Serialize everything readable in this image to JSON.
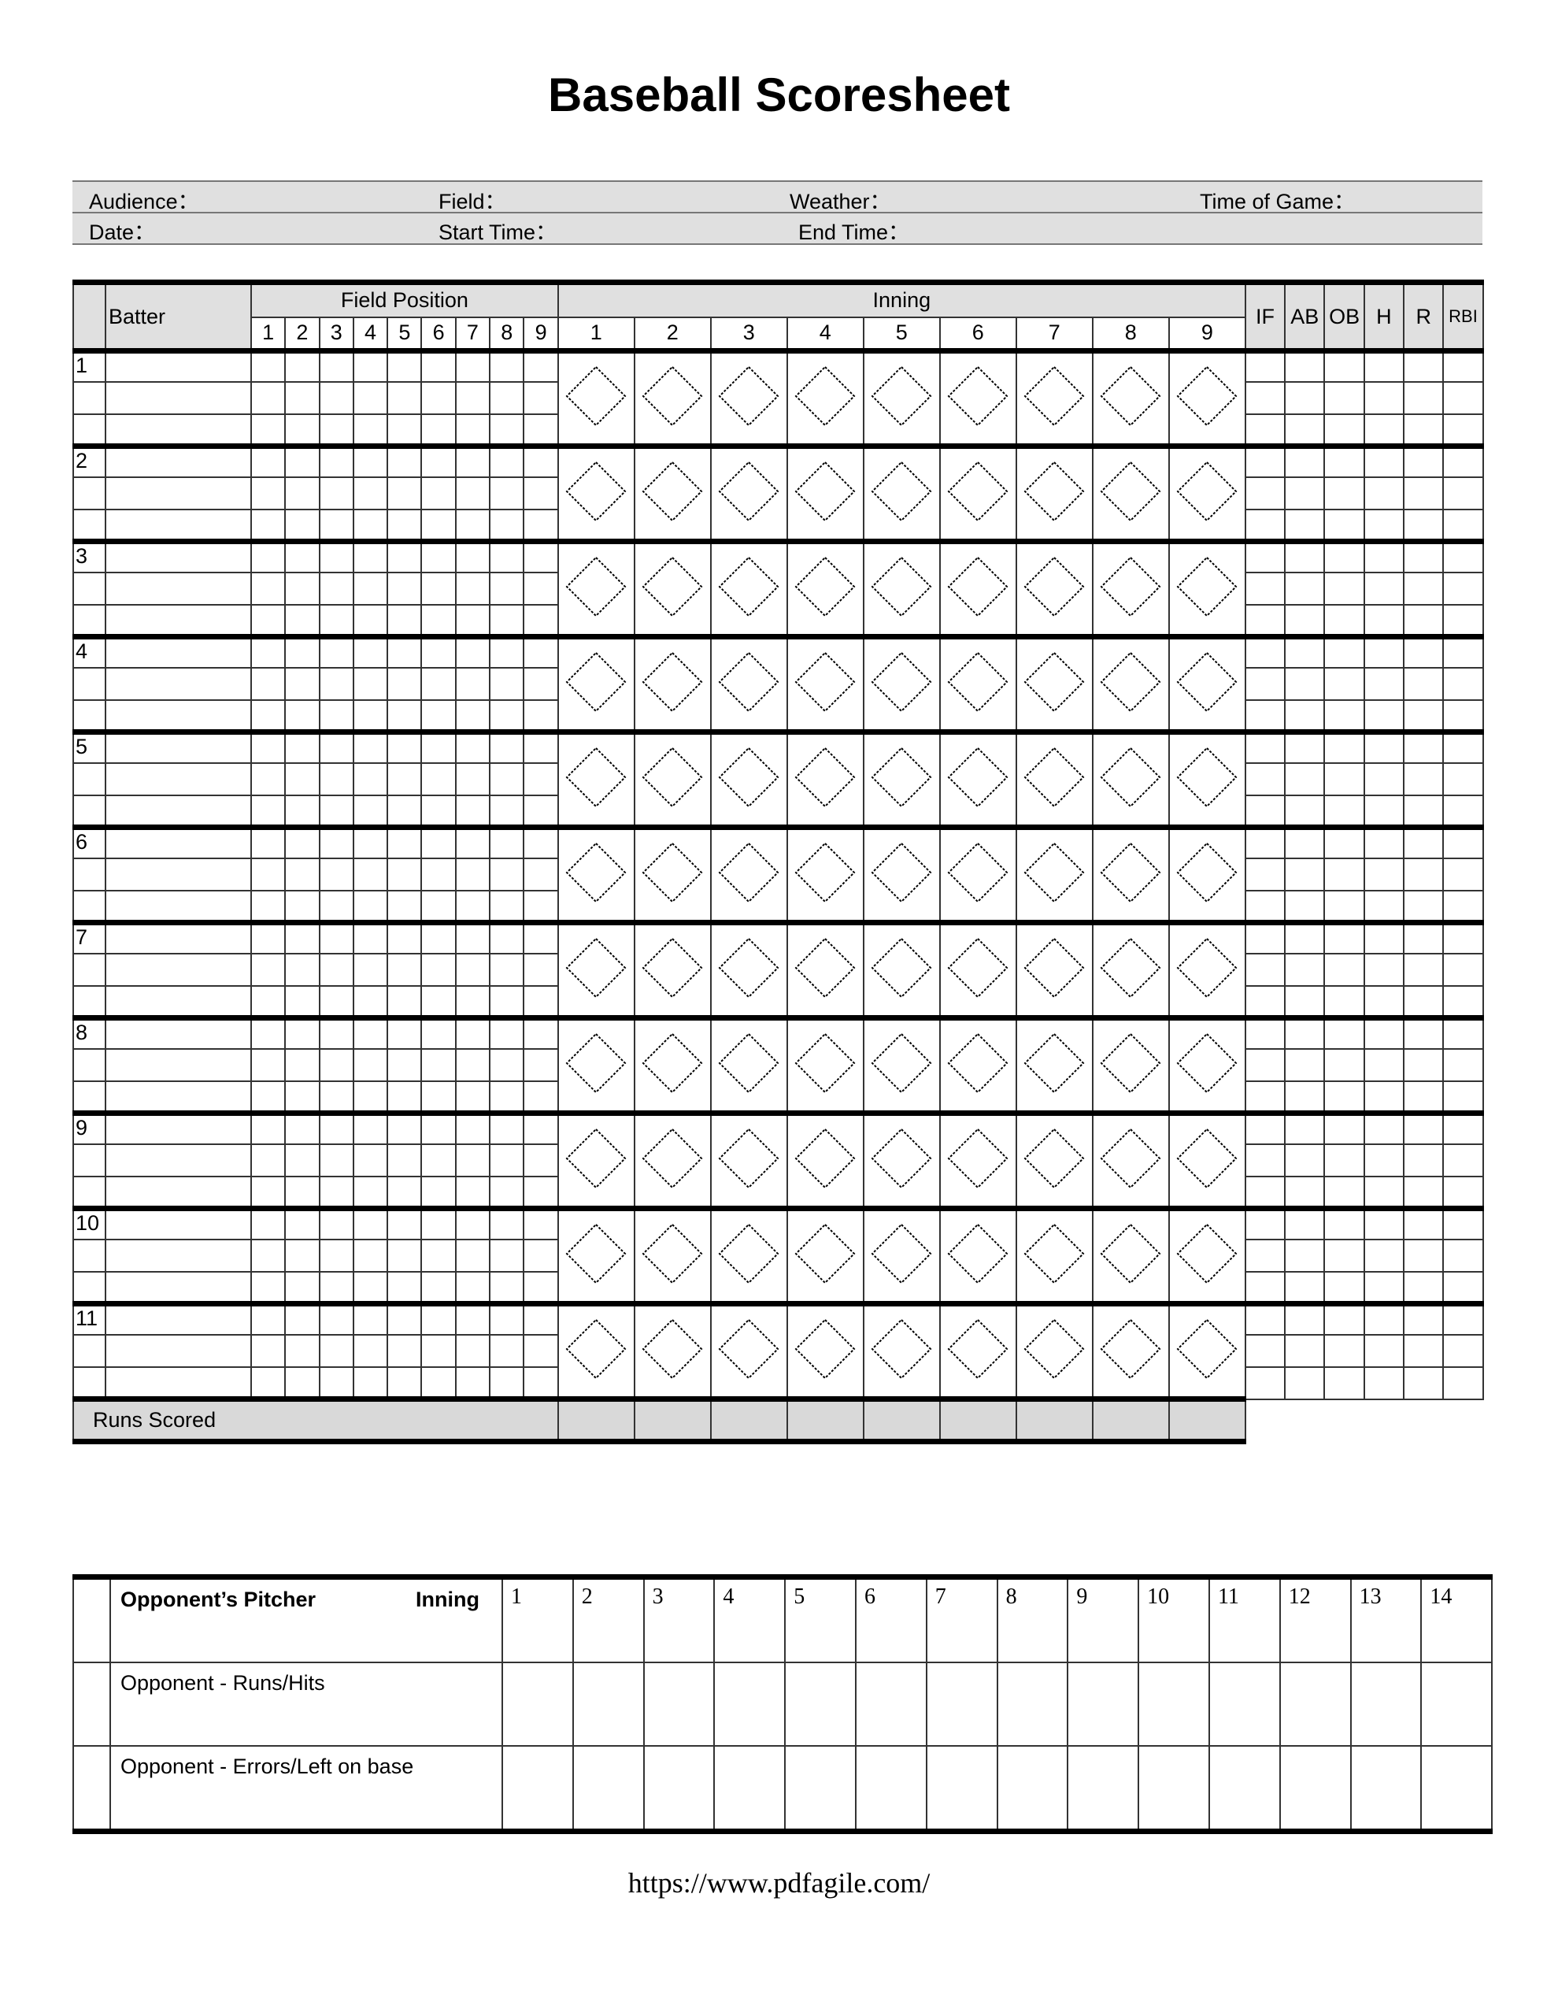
{
  "title": "Baseball Scoresheet",
  "info": {
    "row1": [
      "Audience：",
      "Field：",
      "Weather：",
      "Time of Game："
    ],
    "row2": [
      "Date：",
      "Start Time：",
      "End Time："
    ]
  },
  "scoresheet": {
    "batter_header": "Batter",
    "field_position_header": "Field Position",
    "field_positions": [
      "1",
      "2",
      "3",
      "4",
      "5",
      "6",
      "7",
      "8",
      "9"
    ],
    "inning_header": "Inning",
    "innings": [
      "1",
      "2",
      "3",
      "4",
      "5",
      "6",
      "7",
      "8",
      "9"
    ],
    "stats": [
      "IF",
      "AB",
      "OB",
      "H",
      "R",
      "RBI"
    ],
    "batters": [
      "1",
      "2",
      "3",
      "4",
      "5",
      "6",
      "7",
      "8",
      "9",
      "10",
      "11"
    ],
    "runs_scored_label": "Runs Scored",
    "diamond_icon": "dotted-diamond"
  },
  "opponent": {
    "pitcher_label": "Opponent’s Pitcher",
    "inning_label": "Inning",
    "innings": [
      "1",
      "2",
      "3",
      "4",
      "5",
      "6",
      "7",
      "8",
      "9",
      "10",
      "11",
      "12",
      "13",
      "14"
    ],
    "rows": [
      "Opponent - Runs/Hits",
      "Opponent - Errors/Left on base"
    ]
  },
  "footer": {
    "url": "https://www.pdfagile.com/"
  }
}
